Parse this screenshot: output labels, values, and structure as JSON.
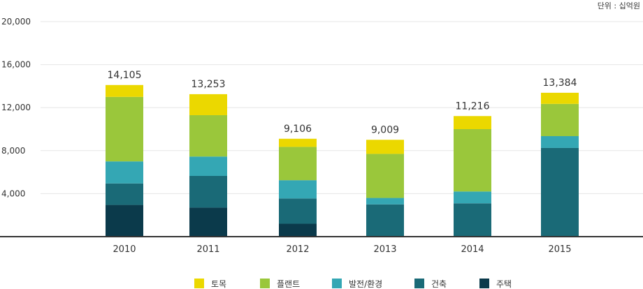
{
  "chart_data": {
    "type": "bar",
    "stacked": true,
    "unit_label": "단위 : 십억원",
    "categories": [
      "2010",
      "2011",
      "2012",
      "2013",
      "2014",
      "2015"
    ],
    "totals": [
      14105,
      13253,
      9106,
      9009,
      11216,
      13384
    ],
    "total_labels": [
      "14,105",
      "13,253",
      "9,106",
      "9,009",
      "11,216",
      "13,384"
    ],
    "series": [
      {
        "name": "주택",
        "color": "#0b3a4b",
        "values": [
          2950,
          2700,
          1200,
          0,
          0,
          0
        ]
      },
      {
        "name": "건축",
        "color": "#1a6a77",
        "values": [
          2000,
          2950,
          2350,
          3000,
          3100,
          8250
        ]
      },
      {
        "name": "발전/환경",
        "color": "#34a7b4",
        "values": [
          2050,
          1800,
          1700,
          600,
          1100,
          1100
        ]
      },
      {
        "name": "플랜트",
        "color": "#9ac73b",
        "values": [
          6000,
          3850,
          3100,
          4100,
          5800,
          3000
        ]
      },
      {
        "name": "토목",
        "color": "#ebd800",
        "values": [
          1105,
          1953,
          756,
          1309,
          1216,
          1034
        ]
      }
    ],
    "legend_order": [
      "토목",
      "플랜트",
      "발전/환경",
      "건축",
      "주택"
    ],
    "y_ticks": [
      "4,000",
      "8,000",
      "12,000",
      "16,000",
      "20,000"
    ],
    "y_tick_values": [
      4000,
      8000,
      12000,
      16000,
      20000
    ],
    "ylim": [
      0,
      20000
    ],
    "grid": true,
    "legend_position": "bottom"
  }
}
